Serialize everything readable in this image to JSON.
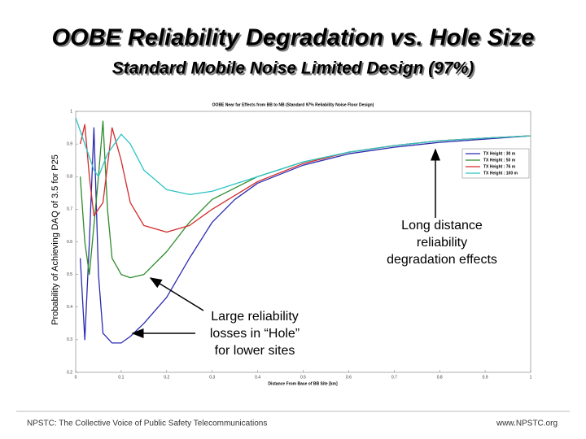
{
  "slide": {
    "title": "OOBE Reliability Degradation vs. Hole Size",
    "subtitle": "Standard Mobile Noise Limited Design (97%)",
    "footer_left": "NPSTC:  The Collective Voice of Public Safety Telecommunications",
    "footer_right": "www.NPSTC.org"
  },
  "chart_data": {
    "type": "line",
    "title": "OOBE Near far Effects from BB to NB (Standard 97% Reliability Noise Floor Design)",
    "xlabel": "Distance From Base of BB Site [km]",
    "ylabel": "Probability of Achieving DAQ of 3.5 for P25",
    "xlim": [
      0,
      1
    ],
    "xticks": [
      0,
      0.1,
      0.2,
      0.3,
      0.4,
      0.5,
      0.6,
      0.7,
      0.8,
      0.9,
      1
    ],
    "ylim": [
      0.2,
      1
    ],
    "yticks": [
      0.2,
      0.3,
      0.4,
      0.5,
      0.6,
      0.7,
      0.8,
      0.9,
      1
    ],
    "grid": false,
    "legend": "upper right",
    "series": [
      {
        "name": "TX Height : 30 m",
        "color": "#2b2bb0",
        "x": [
          0.01,
          0.02,
          0.03,
          0.04,
          0.05,
          0.06,
          0.08,
          0.1,
          0.12,
          0.15,
          0.2,
          0.25,
          0.3,
          0.35,
          0.4,
          0.5,
          0.6,
          0.7,
          0.8,
          0.9,
          1.0
        ],
        "values": [
          0.55,
          0.3,
          0.6,
          0.95,
          0.5,
          0.32,
          0.29,
          0.29,
          0.31,
          0.35,
          0.43,
          0.55,
          0.66,
          0.73,
          0.78,
          0.835,
          0.87,
          0.89,
          0.905,
          0.915,
          0.925
        ]
      },
      {
        "name": "TX Height : 50 m",
        "color": "#2e8b2e",
        "x": [
          0.01,
          0.02,
          0.03,
          0.05,
          0.06,
          0.07,
          0.08,
          0.1,
          0.12,
          0.15,
          0.2,
          0.25,
          0.3,
          0.4,
          0.5,
          0.6,
          0.7,
          0.8,
          0.9,
          1.0
        ],
        "values": [
          0.8,
          0.6,
          0.5,
          0.8,
          0.97,
          0.7,
          0.55,
          0.5,
          0.49,
          0.5,
          0.57,
          0.66,
          0.73,
          0.8,
          0.845,
          0.875,
          0.895,
          0.91,
          0.918,
          0.925
        ]
      },
      {
        "name": "TX Height : 76 m",
        "color": "#d42a2a",
        "x": [
          0.01,
          0.02,
          0.03,
          0.04,
          0.06,
          0.08,
          0.1,
          0.12,
          0.15,
          0.2,
          0.25,
          0.3,
          0.4,
          0.5,
          0.6,
          0.7,
          0.8,
          0.9,
          1.0
        ],
        "values": [
          0.9,
          0.96,
          0.8,
          0.68,
          0.72,
          0.95,
          0.85,
          0.72,
          0.65,
          0.63,
          0.65,
          0.7,
          0.785,
          0.84,
          0.875,
          0.895,
          0.91,
          0.918,
          0.925
        ]
      },
      {
        "name": "TX Height : 100 m",
        "color": "#2ec4c4",
        "x": [
          0.0,
          0.02,
          0.04,
          0.05,
          0.07,
          0.1,
          0.12,
          0.15,
          0.2,
          0.25,
          0.3,
          0.4,
          0.5,
          0.6,
          0.7,
          0.8,
          0.9,
          1.0
        ],
        "values": [
          0.98,
          0.9,
          0.82,
          0.8,
          0.87,
          0.93,
          0.9,
          0.82,
          0.76,
          0.745,
          0.755,
          0.8,
          0.845,
          0.875,
          0.895,
          0.91,
          0.918,
          0.925
        ]
      }
    ],
    "annotations": [
      [
        "Long distance",
        "reliability",
        "degradation effects"
      ],
      [
        "Large reliability",
        "losses in “Hole”",
        "for lower sites"
      ]
    ]
  }
}
